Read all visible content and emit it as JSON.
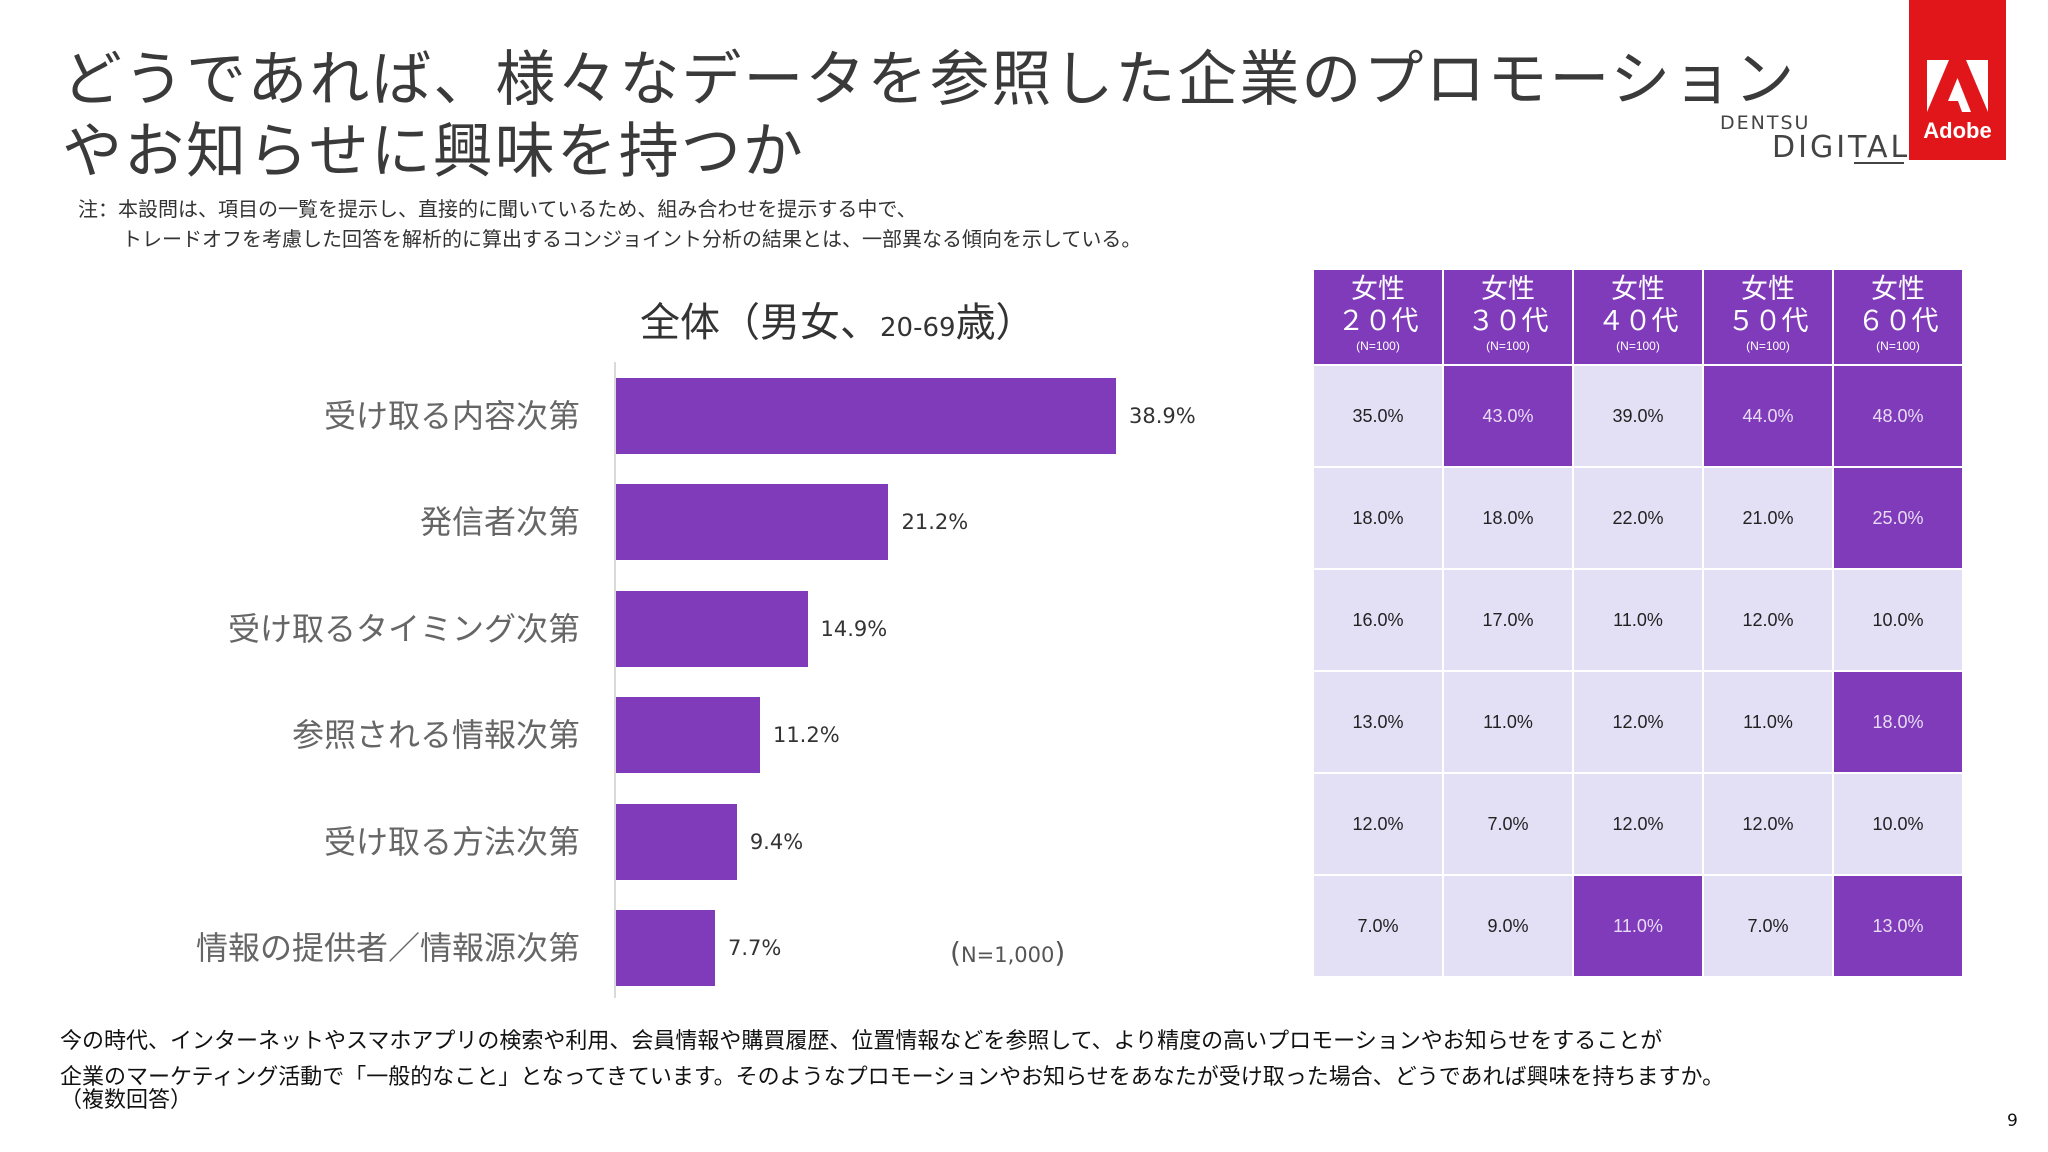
{
  "title_line1": "どうであれば、様々なデータを参照した企業のプロモーション",
  "title_line2": "やお知らせに興味を持つか",
  "note_line1": "注：本設問は、項目の一覧を提示し、直接的に聞いているため、組み合わせを提示する中で、",
  "note_line2": "トレードオフを考慮した回答を解析的に算出するコンジョイント分析の結果とは、一部異なる傾向を示している。",
  "logo_dentsu_1": "DENTSU",
  "logo_dentsu_2": "DIGITAL",
  "logo_adobe": "Adobe",
  "chart_data": [
    {
      "type": "bar",
      "orientation": "horizontal",
      "title_main": "全体（男女、",
      "title_age": "20-69",
      "title_end": "歳）",
      "categories": [
        "受け取る内容次第",
        "発信者次第",
        "受け取るタイミング次第",
        "参照される情報次第",
        "受け取る方法次第",
        "情報の提供者／情報源次第"
      ],
      "values": [
        38.9,
        21.2,
        14.9,
        11.2,
        9.4,
        7.7
      ],
      "value_labels": [
        "38.9%",
        "21.2%",
        "14.9%",
        "11.2%",
        "9.4%",
        "7.7%"
      ],
      "xlim": [
        0,
        50
      ],
      "n_label": "N=1,000",
      "bar_color": "#7f3bba"
    },
    {
      "type": "table",
      "columns": [
        {
          "line1": "女性",
          "line2": "２０代",
          "n": "(N=100)"
        },
        {
          "line1": "女性",
          "line2": "３０代",
          "n": "(N=100)"
        },
        {
          "line1": "女性",
          "line2": "４０代",
          "n": "(N=100)"
        },
        {
          "line1": "女性",
          "line2": "５０代",
          "n": "(N=100)"
        },
        {
          "line1": "女性",
          "line2": "６０代",
          "n": "(N=100)"
        }
      ],
      "rows": [
        [
          "35.0%",
          "43.0%",
          "39.0%",
          "44.0%",
          "48.0%"
        ],
        [
          "18.0%",
          "18.0%",
          "22.0%",
          "21.0%",
          "25.0%"
        ],
        [
          "16.0%",
          "17.0%",
          "11.0%",
          "12.0%",
          "10.0%"
        ],
        [
          "13.0%",
          "11.0%",
          "12.0%",
          "11.0%",
          "18.0%"
        ],
        [
          "12.0%",
          "7.0%",
          "12.0%",
          "12.0%",
          "10.0%"
        ],
        [
          "7.0%",
          "9.0%",
          "11.0%",
          "7.0%",
          "13.0%"
        ]
      ],
      "highlight": [
        [
          false,
          true,
          false,
          true,
          true
        ],
        [
          false,
          false,
          false,
          false,
          true
        ],
        [
          false,
          false,
          false,
          false,
          false
        ],
        [
          false,
          false,
          false,
          false,
          true
        ],
        [
          false,
          false,
          false,
          false,
          false
        ],
        [
          false,
          false,
          true,
          false,
          true
        ]
      ],
      "header_color": "#7f3bba",
      "highlight_color": "#7f3bba",
      "cell_color": "#e3dff5"
    }
  ],
  "question_line1": "今の時代、インターネットやスマホアプリの検索や利用、会員情報や購買履歴、位置情報などを参照して、より精度の高いプロモーションやお知らせをすることが",
  "question_line2": "企業のマーケティング活動で「一般的なこと」となってきています。そのようなプロモーションやお知らせをあなたが受け取った場合、どうであれば興味を持ちますか。",
  "question_line3": "（複数回答）",
  "page_number": "9"
}
